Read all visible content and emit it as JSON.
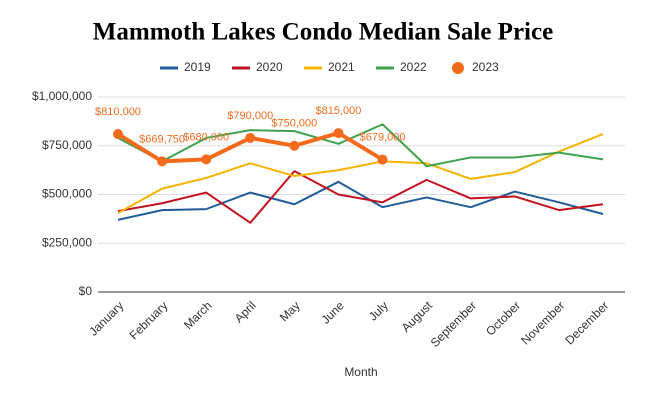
{
  "chart_data": {
    "type": "line",
    "title": "Mammoth Lakes Condo Median Sale Price",
    "x_label": "Month",
    "categories": [
      "January",
      "February",
      "March",
      "April",
      "May",
      "June",
      "July",
      "August",
      "September",
      "October",
      "November",
      "December"
    ],
    "ylim": [
      0,
      1000000
    ],
    "yticks": [
      {
        "value": 0,
        "label": "$0"
      },
      {
        "value": 250000,
        "label": "$250,000"
      },
      {
        "value": 500000,
        "label": "$500,000"
      },
      {
        "value": 750000,
        "label": "$750,000"
      },
      {
        "value": 1000000,
        "label": "$1,000,000"
      }
    ],
    "series": [
      {
        "name": "2019",
        "color": "#1f5c99",
        "values": [
          370000,
          420000,
          425000,
          510000,
          450000,
          565000,
          435000,
          485000,
          435000,
          515000,
          460000,
          400000
        ]
      },
      {
        "name": "2020",
        "color": "#c1121f",
        "values": [
          415000,
          455000,
          510000,
          355000,
          620000,
          500000,
          460000,
          575000,
          480000,
          490000,
          420000,
          450000
        ]
      },
      {
        "name": "2021",
        "color": "#f4b400",
        "values": [
          405000,
          530000,
          585000,
          660000,
          595000,
          625000,
          670000,
          660000,
          580000,
          615000,
          720000,
          810000
        ]
      },
      {
        "name": "2022",
        "color": "#3fa34d",
        "values": [
          790000,
          670000,
          790000,
          830000,
          825000,
          760000,
          860000,
          645000,
          690000,
          690000,
          715000,
          680000
        ]
      },
      {
        "name": "2023",
        "color": "#f26b1d",
        "values": [
          810000,
          669750,
          680000,
          790000,
          750000,
          815000,
          679000,
          null,
          null,
          null,
          null,
          null
        ],
        "value_labels": [
          "$810,000",
          "$669,750",
          "$680,000",
          "$790,000",
          "$750,000",
          "$815,000",
          "$679,000",
          null,
          null,
          null,
          null,
          null
        ]
      }
    ]
  }
}
